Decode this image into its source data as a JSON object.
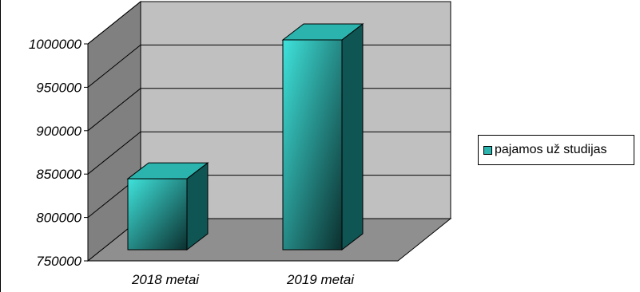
{
  "chart_data": {
    "type": "bar",
    "style": "3d-column",
    "categories": [
      "2018 metai",
      "2019 metai"
    ],
    "series": [
      {
        "name": "pajamos už studijas",
        "values": [
          840000,
          1000000
        ]
      }
    ],
    "title": "",
    "xlabel": "",
    "ylabel": "",
    "ylim": [
      750000,
      1000000
    ],
    "yticks": [
      "750000",
      "800000",
      "850000",
      "900000",
      "950000",
      "1000000"
    ],
    "grid": true,
    "legend_placement": "right",
    "colors": {
      "bar_front_light": "#3fe3dc",
      "bar_front_dark": "#0b2f2e",
      "bar_top": "#2bb3ad",
      "bar_side": "#0f5553",
      "back_wall": "#c0c0c0",
      "side_wall": "#808080",
      "floor": "#8f8f8f",
      "gridline": "#000000"
    }
  }
}
